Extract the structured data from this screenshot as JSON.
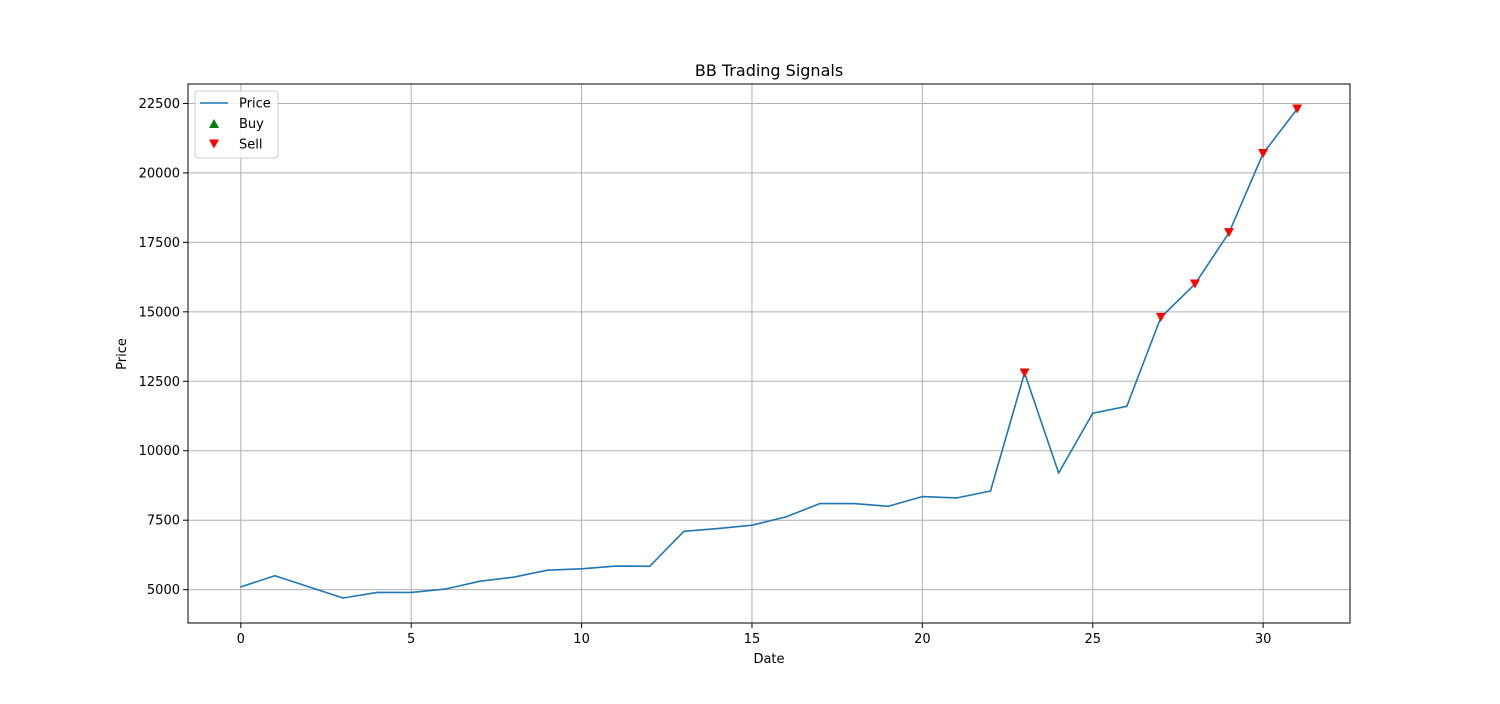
{
  "chart_data": {
    "type": "line",
    "title": "BB Trading Signals",
    "xlabel": "Date",
    "ylabel": "Price",
    "xlim": [
      -1.55,
      32.55
    ],
    "ylim": [
      3800,
      23200
    ],
    "xticks": [
      0,
      5,
      10,
      15,
      20,
      25,
      30
    ],
    "yticks": [
      5000,
      7500,
      10000,
      12500,
      15000,
      17500,
      20000,
      22500
    ],
    "grid": true,
    "legend_position": "upper-left",
    "x": [
      0,
      1,
      2,
      3,
      4,
      5,
      6,
      7,
      8,
      9,
      10,
      11,
      12,
      13,
      14,
      15,
      16,
      17,
      18,
      19,
      20,
      21,
      22,
      23,
      24,
      25,
      26,
      27,
      28,
      29,
      30,
      31
    ],
    "series": [
      {
        "name": "Price",
        "kind": "line",
        "color": "#1f77b4",
        "values": [
          5100,
          5500,
          5100,
          4700,
          4900,
          4900,
          5020,
          5300,
          5450,
          5700,
          5750,
          5850,
          5840,
          7100,
          7200,
          7320,
          7620,
          8100,
          8100,
          8000,
          8350,
          8300,
          8550,
          12800,
          9200,
          11350,
          11600,
          14800,
          16000,
          17850,
          20700,
          22300
        ]
      },
      {
        "name": "Buy",
        "kind": "marker",
        "marker": "triangle-up",
        "color": "#008000",
        "points": []
      },
      {
        "name": "Sell",
        "kind": "marker",
        "marker": "triangle-down",
        "color": "#ff0000",
        "points": [
          {
            "x": 23,
            "y": 12800
          },
          {
            "x": 27,
            "y": 14800
          },
          {
            "x": 28,
            "y": 16000
          },
          {
            "x": 29,
            "y": 17850
          },
          {
            "x": 30,
            "y": 20700
          },
          {
            "x": 31,
            "y": 22300
          }
        ]
      }
    ]
  }
}
